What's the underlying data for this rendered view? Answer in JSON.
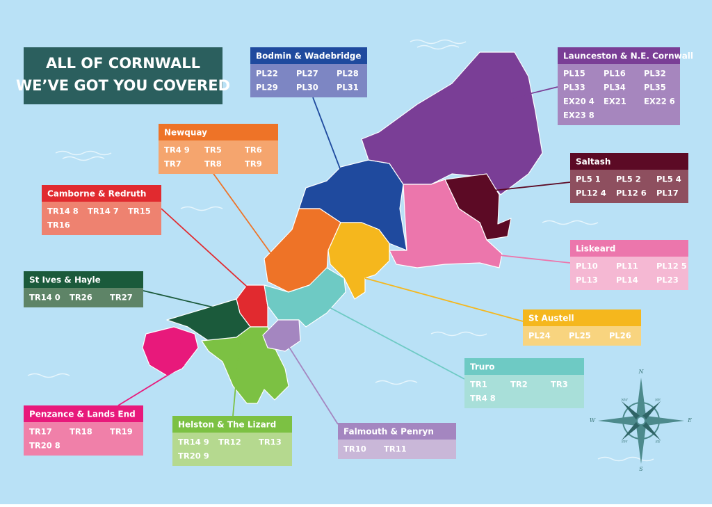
{
  "title": [
    "ALL OF CORNWALL",
    "WE’VE GOT YOU COVERED"
  ],
  "regions": [
    {
      "name": "Bodmin & Wadebridge",
      "color": "#1f4a9e",
      "light": "#7d86c3",
      "codes": [
        "PL22",
        "PL27",
        "PL28",
        "PL29",
        "PL30",
        "PL31"
      ]
    },
    {
      "name": "Launceston & N.E. Cornwall",
      "color": "#7a3e96",
      "light": "#a686be",
      "codes": [
        "PL15",
        "PL16",
        "PL32",
        "PL33",
        "PL34",
        "PL35",
        "EX20 4",
        "EX21",
        "EX22 6",
        "EX23 8"
      ]
    },
    {
      "name": "Newquay",
      "color": "#ee7327",
      "light": "#f5a56e",
      "codes": [
        "TR4 9",
        "TR5",
        "TR6",
        "TR7",
        "TR8",
        "TR9"
      ]
    },
    {
      "name": "Saltash",
      "color": "#5c0a25",
      "light": "#8e4f5f",
      "codes": [
        "PL5 1",
        "PL5 2",
        "PL5 4",
        "PL12 4",
        "PL12 6",
        "PL17"
      ]
    },
    {
      "name": "Camborne & Redruth",
      "color": "#e12a2f",
      "light": "#ee8270",
      "codes": [
        "TR14 8",
        "TR14 7",
        "TR15",
        "TR16"
      ]
    },
    {
      "name": "Liskeard",
      "color": "#ec76ac",
      "light": "#f5b8d3",
      "codes": [
        "PL10",
        "PL11",
        "PL12 5",
        "PL13",
        "PL14",
        "PL23"
      ]
    },
    {
      "name": "St Ives & Hayle",
      "color": "#1b5a3b",
      "light": "#5e8467",
      "codes": [
        "TR14 0",
        "TR26",
        "TR27"
      ]
    },
    {
      "name": "St Austell",
      "color": "#f5b71d",
      "light": "#f8d47f",
      "codes": [
        "PL24",
        "PL25",
        "PL26"
      ]
    },
    {
      "name": "Truro",
      "color": "#6ecac4",
      "light": "#a8dfd9",
      "codes": [
        "TR1",
        "TR2",
        "TR3",
        "TR4 8"
      ]
    },
    {
      "name": "Penzance & Lands End",
      "color": "#e8197b",
      "light": "#f080a9",
      "codes": [
        "TR17",
        "TR18",
        "TR19",
        "TR20 8"
      ]
    },
    {
      "name": "Helston & The Lizard",
      "color": "#7cc143",
      "light": "#b5d98f",
      "codes": [
        "TR14 9",
        "TR12",
        "TR13",
        "TR20 9"
      ]
    },
    {
      "name": "Falmouth & Penryn",
      "color": "#a486c0",
      "light": "#c9b7d8",
      "codes": [
        "TR10",
        "TR11"
      ]
    }
  ],
  "compass": [
    "N",
    "E",
    "S",
    "W",
    "NE",
    "NW",
    "SE",
    "SW"
  ]
}
